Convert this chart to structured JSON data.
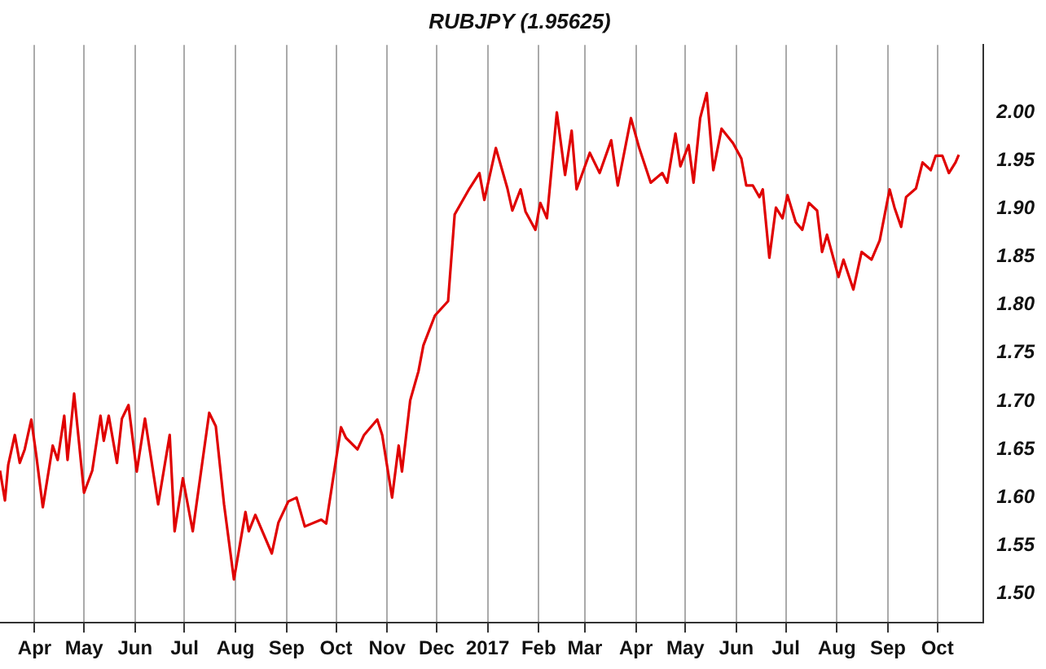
{
  "chart_data": {
    "type": "line",
    "title": "RUBJPY (1.95625)",
    "x": [
      "2016-03-11",
      "2016-03-14",
      "2016-03-16",
      "2016-03-20",
      "2016-03-23",
      "2016-03-26",
      "2016-03-30",
      "2016-04-02",
      "2016-04-06",
      "2016-04-12",
      "2016-04-15",
      "2016-04-19",
      "2016-04-21",
      "2016-04-25",
      "2016-05-01",
      "2016-05-06",
      "2016-05-11",
      "2016-05-13",
      "2016-05-16",
      "2016-05-21",
      "2016-05-24",
      "2016-05-28",
      "2016-06-02",
      "2016-06-07",
      "2016-06-15",
      "2016-06-22",
      "2016-06-25",
      "2016-06-30",
      "2016-07-06",
      "2016-07-12",
      "2016-07-16",
      "2016-07-20",
      "2016-07-25",
      "2016-07-31",
      "2016-08-07",
      "2016-08-09",
      "2016-08-13",
      "2016-08-23",
      "2016-08-27",
      "2016-09-02",
      "2016-09-07",
      "2016-09-12",
      "2016-09-22",
      "2016-09-25",
      "2016-10-04",
      "2016-10-07",
      "2016-10-14",
      "2016-10-18",
      "2016-10-26",
      "2016-10-29",
      "2016-11-04",
      "2016-11-08",
      "2016-11-10",
      "2016-11-15",
      "2016-11-20",
      "2016-11-23",
      "2016-11-30",
      "2016-12-08",
      "2016-12-12",
      "2016-12-16",
      "2016-12-21",
      "2016-12-27",
      "2016-12-30",
      "2017-01-06",
      "2017-01-13",
      "2017-01-16",
      "2017-01-21",
      "2017-01-24",
      "2017-01-30",
      "2017-02-02",
      "2017-02-06",
      "2017-02-12",
      "2017-02-17",
      "2017-02-21",
      "2017-02-24",
      "2017-03-04",
      "2017-03-10",
      "2017-03-17",
      "2017-03-21",
      "2017-03-29",
      "2017-04-03",
      "2017-04-10",
      "2017-04-17",
      "2017-04-20",
      "2017-04-25",
      "2017-04-28",
      "2017-05-03",
      "2017-05-06",
      "2017-05-10",
      "2017-05-14",
      "2017-05-18",
      "2017-05-23",
      "2017-05-30",
      "2017-06-04",
      "2017-06-07",
      "2017-06-11",
      "2017-06-15",
      "2017-06-17",
      "2017-06-21",
      "2017-06-25",
      "2017-06-29",
      "2017-07-02",
      "2017-07-07",
      "2017-07-11",
      "2017-07-15",
      "2017-07-20",
      "2017-07-23",
      "2017-07-26",
      "2017-08-02",
      "2017-08-05",
      "2017-08-11",
      "2017-08-16",
      "2017-08-22",
      "2017-08-27",
      "2017-09-02",
      "2017-09-05",
      "2017-09-09",
      "2017-09-12",
      "2017-09-18",
      "2017-09-22",
      "2017-09-27",
      "2017-09-30",
      "2017-10-04",
      "2017-10-08",
      "2017-10-12",
      "2017-10-14"
    ],
    "series": [
      {
        "color": "#e00000",
        "values": [
          1.628,
          1.597,
          1.634,
          1.665,
          1.636,
          1.65,
          1.681,
          1.644,
          1.59,
          1.654,
          1.639,
          1.685,
          1.639,
          1.708,
          1.605,
          1.628,
          1.685,
          1.659,
          1.685,
          1.636,
          1.682,
          1.696,
          1.627,
          1.682,
          1.593,
          1.665,
          1.565,
          1.62,
          1.565,
          1.639,
          1.688,
          1.674,
          1.593,
          1.515,
          1.585,
          1.565,
          1.582,
          1.542,
          1.574,
          1.596,
          1.6,
          1.57,
          1.577,
          1.573,
          1.673,
          1.662,
          1.65,
          1.665,
          1.681,
          1.665,
          1.6,
          1.654,
          1.627,
          1.701,
          1.731,
          1.758,
          1.789,
          1.804,
          1.894,
          1.906,
          1.921,
          1.937,
          1.909,
          1.963,
          1.921,
          1.898,
          1.92,
          1.897,
          1.878,
          1.906,
          1.89,
          2.0,
          1.935,
          1.981,
          1.92,
          1.958,
          1.937,
          1.971,
          1.924,
          1.994,
          1.963,
          1.927,
          1.937,
          1.927,
          1.978,
          1.944,
          1.966,
          1.927,
          1.994,
          2.02,
          1.94,
          1.983,
          1.968,
          1.952,
          1.924,
          1.924,
          1.912,
          1.92,
          1.849,
          1.901,
          1.89,
          1.914,
          1.886,
          1.878,
          1.906,
          1.898,
          1.855,
          1.873,
          1.829,
          1.847,
          1.816,
          1.855,
          1.847,
          1.867,
          1.92,
          1.901,
          1.881,
          1.912,
          1.921,
          1.948,
          1.94,
          1.955,
          1.955,
          1.937,
          1.948,
          1.956
        ]
      }
    ],
    "xlim": [
      "2016-03-11",
      "2017-10-29"
    ],
    "xticks": [
      {
        "value": "2016-04-01",
        "label": "Apr"
      },
      {
        "value": "2016-05-01",
        "label": "May"
      },
      {
        "value": "2016-06-01",
        "label": "Jun"
      },
      {
        "value": "2016-07-01",
        "label": "Jul"
      },
      {
        "value": "2016-08-01",
        "label": "Aug"
      },
      {
        "value": "2016-09-01",
        "label": "Sep"
      },
      {
        "value": "2016-10-01",
        "label": "Oct"
      },
      {
        "value": "2016-11-01",
        "label": "Nov"
      },
      {
        "value": "2016-12-01",
        "label": "Dec"
      },
      {
        "value": "2017-01-01",
        "label": "2017"
      },
      {
        "value": "2017-02-01",
        "label": "Feb"
      },
      {
        "value": "2017-03-01",
        "label": "Mar"
      },
      {
        "value": "2017-04-01",
        "label": "Apr"
      },
      {
        "value": "2017-05-01",
        "label": "May"
      },
      {
        "value": "2017-06-01",
        "label": "Jun"
      },
      {
        "value": "2017-07-01",
        "label": "Jul"
      },
      {
        "value": "2017-08-01",
        "label": "Aug"
      },
      {
        "value": "2017-09-01",
        "label": "Sep"
      },
      {
        "value": "2017-10-01",
        "label": "Oct"
      }
    ],
    "ylim": [
      1.47,
      2.07
    ],
    "yticks": [
      {
        "value": 1.5,
        "label": "1.50"
      },
      {
        "value": 1.55,
        "label": "1.55"
      },
      {
        "value": 1.6,
        "label": "1.60"
      },
      {
        "value": 1.65,
        "label": "1.65"
      },
      {
        "value": 1.7,
        "label": "1.70"
      },
      {
        "value": 1.75,
        "label": "1.75"
      },
      {
        "value": 1.8,
        "label": "1.80"
      },
      {
        "value": 1.85,
        "label": "1.85"
      },
      {
        "value": 1.9,
        "label": "1.90"
      },
      {
        "value": 1.95,
        "label": "1.95"
      },
      {
        "value": 2.0,
        "label": "2.00"
      }
    ],
    "grid": "x",
    "legend": false,
    "marker": "none",
    "line_style": "solid"
  }
}
